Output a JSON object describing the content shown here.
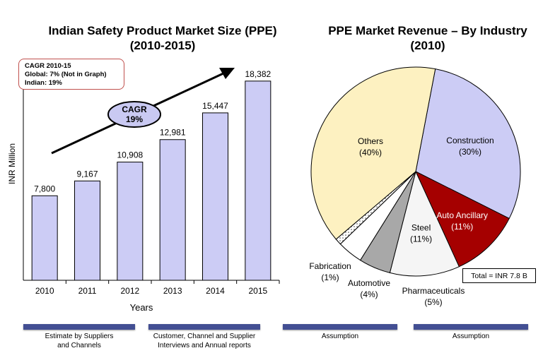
{
  "bar_chart": {
    "title_line1": "Indian Safety Product Market Size (PPE)",
    "title_line2": "(2010-2015)",
    "cagr_box": [
      "CAGR  2010-15",
      "Global: 7% (Not in Graph)",
      "Indian: 19%"
    ],
    "cagr_ellipse": [
      "CAGR",
      "19%"
    ]
  },
  "pie_chart": {
    "title_line1": "PPE Market Revenue – By Industry",
    "title_line2": "(2010)",
    "total_label": "Total = INR 7.8 B"
  },
  "chart_data": [
    {
      "type": "bar",
      "title": "Indian Safety Product Market Size (PPE) (2010-2015)",
      "xlabel": "Years",
      "ylabel": "INR Million",
      "categories": [
        "2010",
        "2011",
        "2012",
        "2013",
        "2014",
        "2015"
      ],
      "values": [
        7800,
        9167,
        10908,
        12981,
        15447,
        18382
      ],
      "value_labels": [
        "7,800",
        "9,167",
        "10,908",
        "12,981",
        "15,447",
        "18,382"
      ],
      "ylim": [
        0,
        20000
      ],
      "color": "#ccccf5"
    },
    {
      "type": "pie",
      "title": "PPE Market Revenue – By Industry (2010)",
      "slices": [
        {
          "label": "Construction",
          "pct_label": "(30%)",
          "value": 30,
          "color": "#ccccf5"
        },
        {
          "label": "Auto Ancillary",
          "pct_label": "(11%)",
          "value": 11,
          "color": "#a50000"
        },
        {
          "label": "Steel",
          "pct_label": "(11%)",
          "value": 11,
          "color": "#f5f5f5"
        },
        {
          "label": "Pharmaceuticals",
          "pct_label": "(5%)",
          "value": 5,
          "color": "#a8a8a8"
        },
        {
          "label": "Automotive",
          "pct_label": "(4%)",
          "value": 4,
          "color": "#ffffff"
        },
        {
          "label": "Fabrication",
          "pct_label": "(1%)",
          "value": 1,
          "color": "#dddddd"
        },
        {
          "label": "Others",
          "pct_label": "(40%)",
          "value": 40,
          "color": "#fdf1c1"
        }
      ]
    }
  ],
  "footer": [
    {
      "text_line1": "Estimate by Suppliers",
      "text_line2": "and Channels"
    },
    {
      "text_line1": "Customer, Channel and Supplier",
      "text_line2": "Interviews and Annual reports"
    },
    {
      "text_line1": "Assumption",
      "text_line2": ""
    },
    {
      "text_line1": "Assumption",
      "text_line2": ""
    }
  ]
}
